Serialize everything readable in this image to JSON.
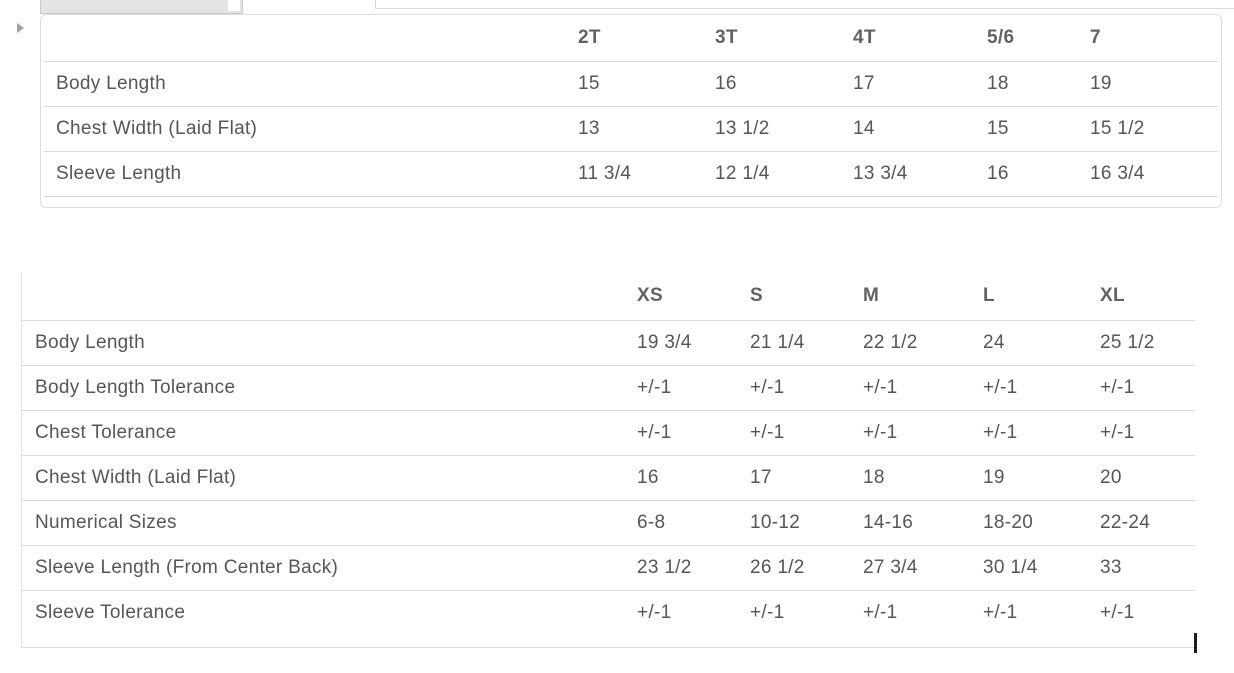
{
  "tabs": {
    "selected_tab": {
      "style": "gray",
      "label": ""
    },
    "inactive_tab": {
      "style": "white-outline",
      "label": ""
    }
  },
  "icons": {
    "expand_chevron": "right-pointing-triangle",
    "text_cursor": "caret"
  },
  "colors": {
    "background": "#ffffff",
    "body_text": "#565659",
    "header_text": "#626266",
    "divider": "#d9d9d9",
    "card_border": "#dedede",
    "tab_fill": "#e4e4e4",
    "caret": "#1c1c1c"
  },
  "tables": [
    {
      "name": "toddler-size-chart",
      "columns": [
        "",
        "2T",
        "3T",
        "4T",
        "5/6",
        "7"
      ],
      "rows": [
        {
          "label": "Body Length",
          "values": [
            "15",
            "16",
            "17",
            "18",
            "19"
          ]
        },
        {
          "label": "Chest Width (Laid Flat)",
          "values": [
            "13",
            "13 1/2",
            "14",
            "15",
            "15 1/2"
          ]
        },
        {
          "label": "Sleeve Length",
          "values": [
            "11 3/4",
            "12 1/4",
            "13 3/4",
            "16",
            "16 3/4"
          ]
        }
      ]
    },
    {
      "name": "adult-size-chart",
      "columns": [
        "",
        "XS",
        "S",
        "M",
        "L",
        "XL"
      ],
      "rows": [
        {
          "label": "Body Length",
          "values": [
            "19 3/4",
            "21 1/4",
            "22 1/2",
            "24",
            "25 1/2"
          ]
        },
        {
          "label": "Body Length Tolerance",
          "values": [
            "+/-1",
            "+/-1",
            "+/-1",
            "+/-1",
            "+/-1"
          ]
        },
        {
          "label": "Chest Tolerance",
          "values": [
            "+/-1",
            "+/-1",
            "+/-1",
            "+/-1",
            "+/-1"
          ]
        },
        {
          "label": "Chest Width (Laid Flat)",
          "values": [
            "16",
            "17",
            "18",
            "19",
            "20"
          ]
        },
        {
          "label": "Numerical Sizes",
          "values": [
            "6-8",
            "10-12",
            "14-16",
            "18-20",
            "22-24"
          ]
        },
        {
          "label": "Sleeve Length (From Center Back)",
          "values": [
            "23 1/2",
            "26 1/2",
            "27 3/4",
            "30 1/4",
            "33"
          ]
        },
        {
          "label": "Sleeve Tolerance",
          "values": [
            "+/-1",
            "+/-1",
            "+/-1",
            "+/-1",
            "+/-1"
          ]
        }
      ]
    }
  ]
}
